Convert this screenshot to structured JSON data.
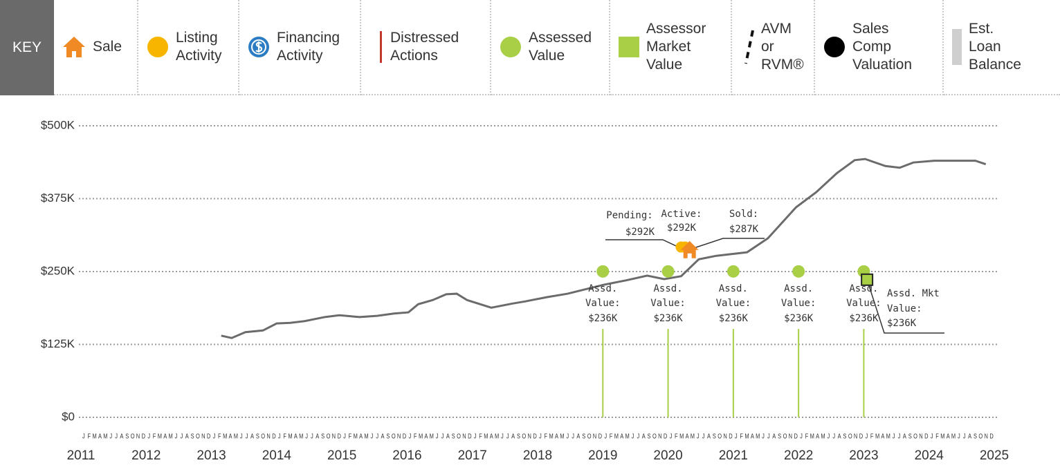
{
  "key": {
    "title": "KEY",
    "items": [
      [
        "Sale"
      ],
      [
        "Listing",
        "Activity"
      ],
      [
        "Financing",
        "Activity"
      ],
      [
        "Distressed",
        "Actions"
      ],
      [
        "Assessed",
        "Value"
      ],
      [
        "Assessor",
        "Market",
        "Value"
      ],
      [
        "AVM",
        "or",
        "RVM®"
      ],
      [
        "Sales",
        "Comp",
        "Valuation"
      ],
      [
        "Est.",
        "Loan",
        "Balance"
      ]
    ]
  },
  "chart_data": {
    "type": "line",
    "xlim": [
      2011,
      2025
    ],
    "xticks": [
      2011,
      2012,
      2013,
      2014,
      2015,
      2016,
      2017,
      2018,
      2019,
      2020,
      2021,
      2022,
      2023,
      2024,
      2025
    ],
    "month_labels": [
      "J",
      "F",
      "M",
      "A",
      "M",
      "J",
      "J",
      "A",
      "S",
      "O",
      "N",
      "D"
    ],
    "ylim": [
      0,
      500
    ],
    "yticks": [
      {
        "value": 0,
        "label": "$0"
      },
      {
        "value": 125,
        "label": "$125K"
      },
      {
        "value": 250,
        "label": "$250K"
      },
      {
        "value": 375,
        "label": "$375K"
      },
      {
        "value": 500,
        "label": "$500K"
      }
    ],
    "grid": true,
    "series": [
      {
        "color": "#6b6b6b",
        "x": [
          2013.15,
          2013.31,
          2013.52,
          2013.79,
          2014.0,
          2014.21,
          2014.43,
          2014.74,
          2014.96,
          2015.27,
          2015.54,
          2015.8,
          2016.02,
          2016.17,
          2016.39,
          2016.6,
          2016.76,
          2016.92,
          2017.29,
          2017.61,
          2017.82,
          2018.14,
          2018.46,
          2019.0,
          2019.36,
          2019.68,
          2019.94,
          2020.2,
          2020.47,
          2020.74,
          2021.21,
          2021.53,
          2021.96,
          2022.27,
          2022.59,
          2022.86,
          2023.02,
          2023.33,
          2023.55,
          2023.76,
          2024.08,
          2024.39,
          2024.71,
          2024.87
        ],
        "values": [
          140,
          136,
          146,
          149,
          161,
          162,
          165,
          172,
          175,
          172,
          174,
          178,
          180,
          194,
          201,
          211,
          212,
          201,
          188,
          195,
          199,
          206,
          212,
          227,
          235,
          243,
          237,
          242,
          271,
          277,
          283,
          307,
          360,
          386,
          419,
          441,
          443,
          431,
          428,
          437,
          440,
          440,
          440,
          434
        ]
      }
    ],
    "assessed": {
      "color": "#a8cf45",
      "x": [
        2019,
        2020,
        2021,
        2022,
        2023
      ],
      "values": [
        236,
        236,
        236,
        236,
        236
      ],
      "value_labels": [
        "$236K",
        "$236K",
        "$236K",
        "$236K",
        "$236K"
      ],
      "label_lines": [
        "Assd.",
        "Value:"
      ]
    },
    "market": {
      "color": "#a8cf45",
      "x": [
        2023.05
      ],
      "values": [
        236
      ],
      "value_labels": [
        "$236K"
      ],
      "label_lines": [
        "Assd. Mkt",
        "Value:"
      ]
    },
    "listing": {
      "color": "#f7b500",
      "x": [
        2020.2,
        2020.26
      ],
      "values": [
        292,
        292
      ],
      "value_labels": [
        "$292K",
        "$292K"
      ],
      "labels": [
        "Pending:",
        "Active:"
      ]
    },
    "sale": {
      "color": "#f08a24",
      "x": [
        2020.33
      ],
      "values": [
        287
      ],
      "value_labels": [
        "$287K"
      ],
      "labels": [
        "Sold:"
      ]
    }
  }
}
